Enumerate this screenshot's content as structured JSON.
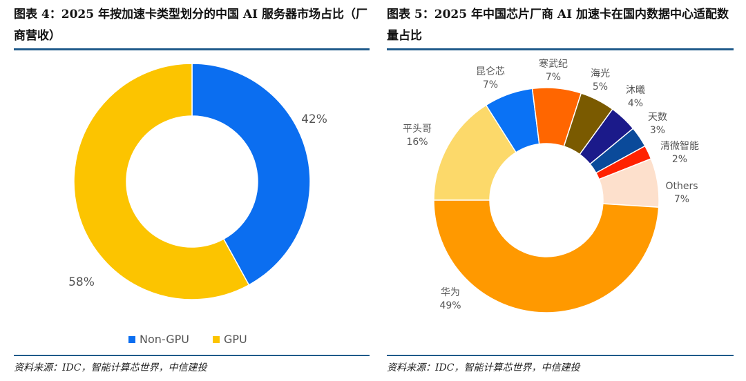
{
  "chart_data": [
    {
      "type": "pie",
      "title": "图表 4：2025 年按加速卡类型划分的中国 AI 服务器市场占比（厂商营收）",
      "source": "资料来源：IDC，智能计算芯世界，中信建投",
      "categories": [
        "Non-GPU",
        "GPU"
      ],
      "values": [
        42,
        58
      ],
      "labels": [
        "42%",
        "58%"
      ],
      "colors": [
        "#0b6ef0",
        "#fcc400"
      ],
      "legend": "bottom"
    },
    {
      "type": "pie",
      "title": "图表 5：2025 年中国芯片厂商 AI 加速卡在国内数据中心适配数量占比",
      "source": "资料来源：IDC，智能计算芯世界，中信建投",
      "categories": [
        "平头哥",
        "昆仑芯",
        "寒武纪",
        "海光",
        "沐曦",
        "天数",
        "清微智能",
        "Others",
        "华为"
      ],
      "values": [
        16,
        7,
        7,
        5,
        4,
        3,
        2,
        7,
        49
      ],
      "labels": [
        "16%",
        "7%",
        "7%",
        "5%",
        "4%",
        "3%",
        "2%",
        "7%",
        "49%"
      ],
      "colors": [
        "#fcd96a",
        "#0a72f5",
        "#ff6600",
        "#7a5a00",
        "#1b1a8a",
        "#0a4a9a",
        "#ff2200",
        "#fde0cc",
        "#ff9900"
      ]
    }
  ]
}
